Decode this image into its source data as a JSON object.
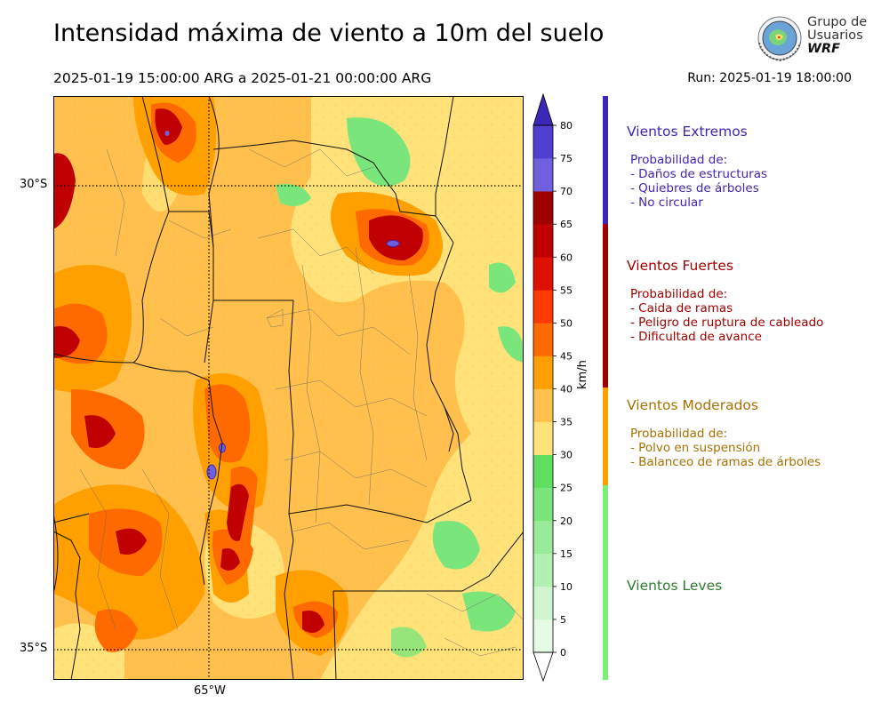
{
  "header": {
    "title": "Intensidad máxima de viento a 10m del suelo",
    "period": "2025-01-19 15:00:00 ARG  a  2025-01-21 00:00:00 ARG",
    "run": "Run: 2025-01-19 18:00:00"
  },
  "logo": {
    "line1": "Grupo de",
    "line2": "Usuarios",
    "line3": "WRF",
    "icon": "globe-logo-icon"
  },
  "map": {
    "lat_labels": [
      "30°S",
      "35°S"
    ],
    "lon_labels": [
      "65°W"
    ],
    "grid_style": "dotted",
    "features": [
      "argentina-province-borders",
      "department-borders",
      "wind-speed-filled-contours"
    ],
    "max_wind_areas": [
      "northeast-santiago-del-estero",
      "catamarca-tucuman-ridge",
      "northwest-andes"
    ]
  },
  "colorbar": {
    "unit": "km/h",
    "ticks": [
      "0",
      "5",
      "10",
      "15",
      "20",
      "25",
      "30",
      "35",
      "40",
      "45",
      "50",
      "55",
      "60",
      "65",
      "70",
      "75",
      "80"
    ],
    "colors": [
      "#e6fbe6",
      "#cff6cf",
      "#b2f0b2",
      "#98eb98",
      "#7ae57a",
      "#5fde5f",
      "#ffe37a",
      "#ffc04d",
      "#ffa000",
      "#ff6a00",
      "#ff3a00",
      "#e01000",
      "#c00000",
      "#a00000",
      "#7060e0",
      "#5040d0",
      "#3c28b8"
    ],
    "extend": "both"
  },
  "categories": [
    {
      "name": "Vientos Extremos",
      "color": "#3c28b8",
      "bar_color": "#3c28b8",
      "prob_title": "Probabilidad de:",
      "items": [
        "- Daños de estructuras",
        "- Quiebres de árboles",
        "- No circular"
      ]
    },
    {
      "name": "Vientos Fuertes",
      "color": "#a00000",
      "bar_color": "#a00000",
      "prob_title": "Probabilidad de:",
      "items": [
        "- Caida de ramas",
        "- Peligro de ruptura de cableado",
        "- Dificultad de avance"
      ]
    },
    {
      "name": "Vientos Moderados",
      "color": "#a87000",
      "bar_color": "#ffa000",
      "prob_title": "Probabilidad de:",
      "items": [
        "- Polvo en suspensión",
        "- Balanceo de ramas de árboles"
      ]
    },
    {
      "name": "Vientos Leves",
      "color": "#2e7d2e",
      "bar_color": "#7af07a",
      "prob_title": "",
      "items": []
    }
  ]
}
